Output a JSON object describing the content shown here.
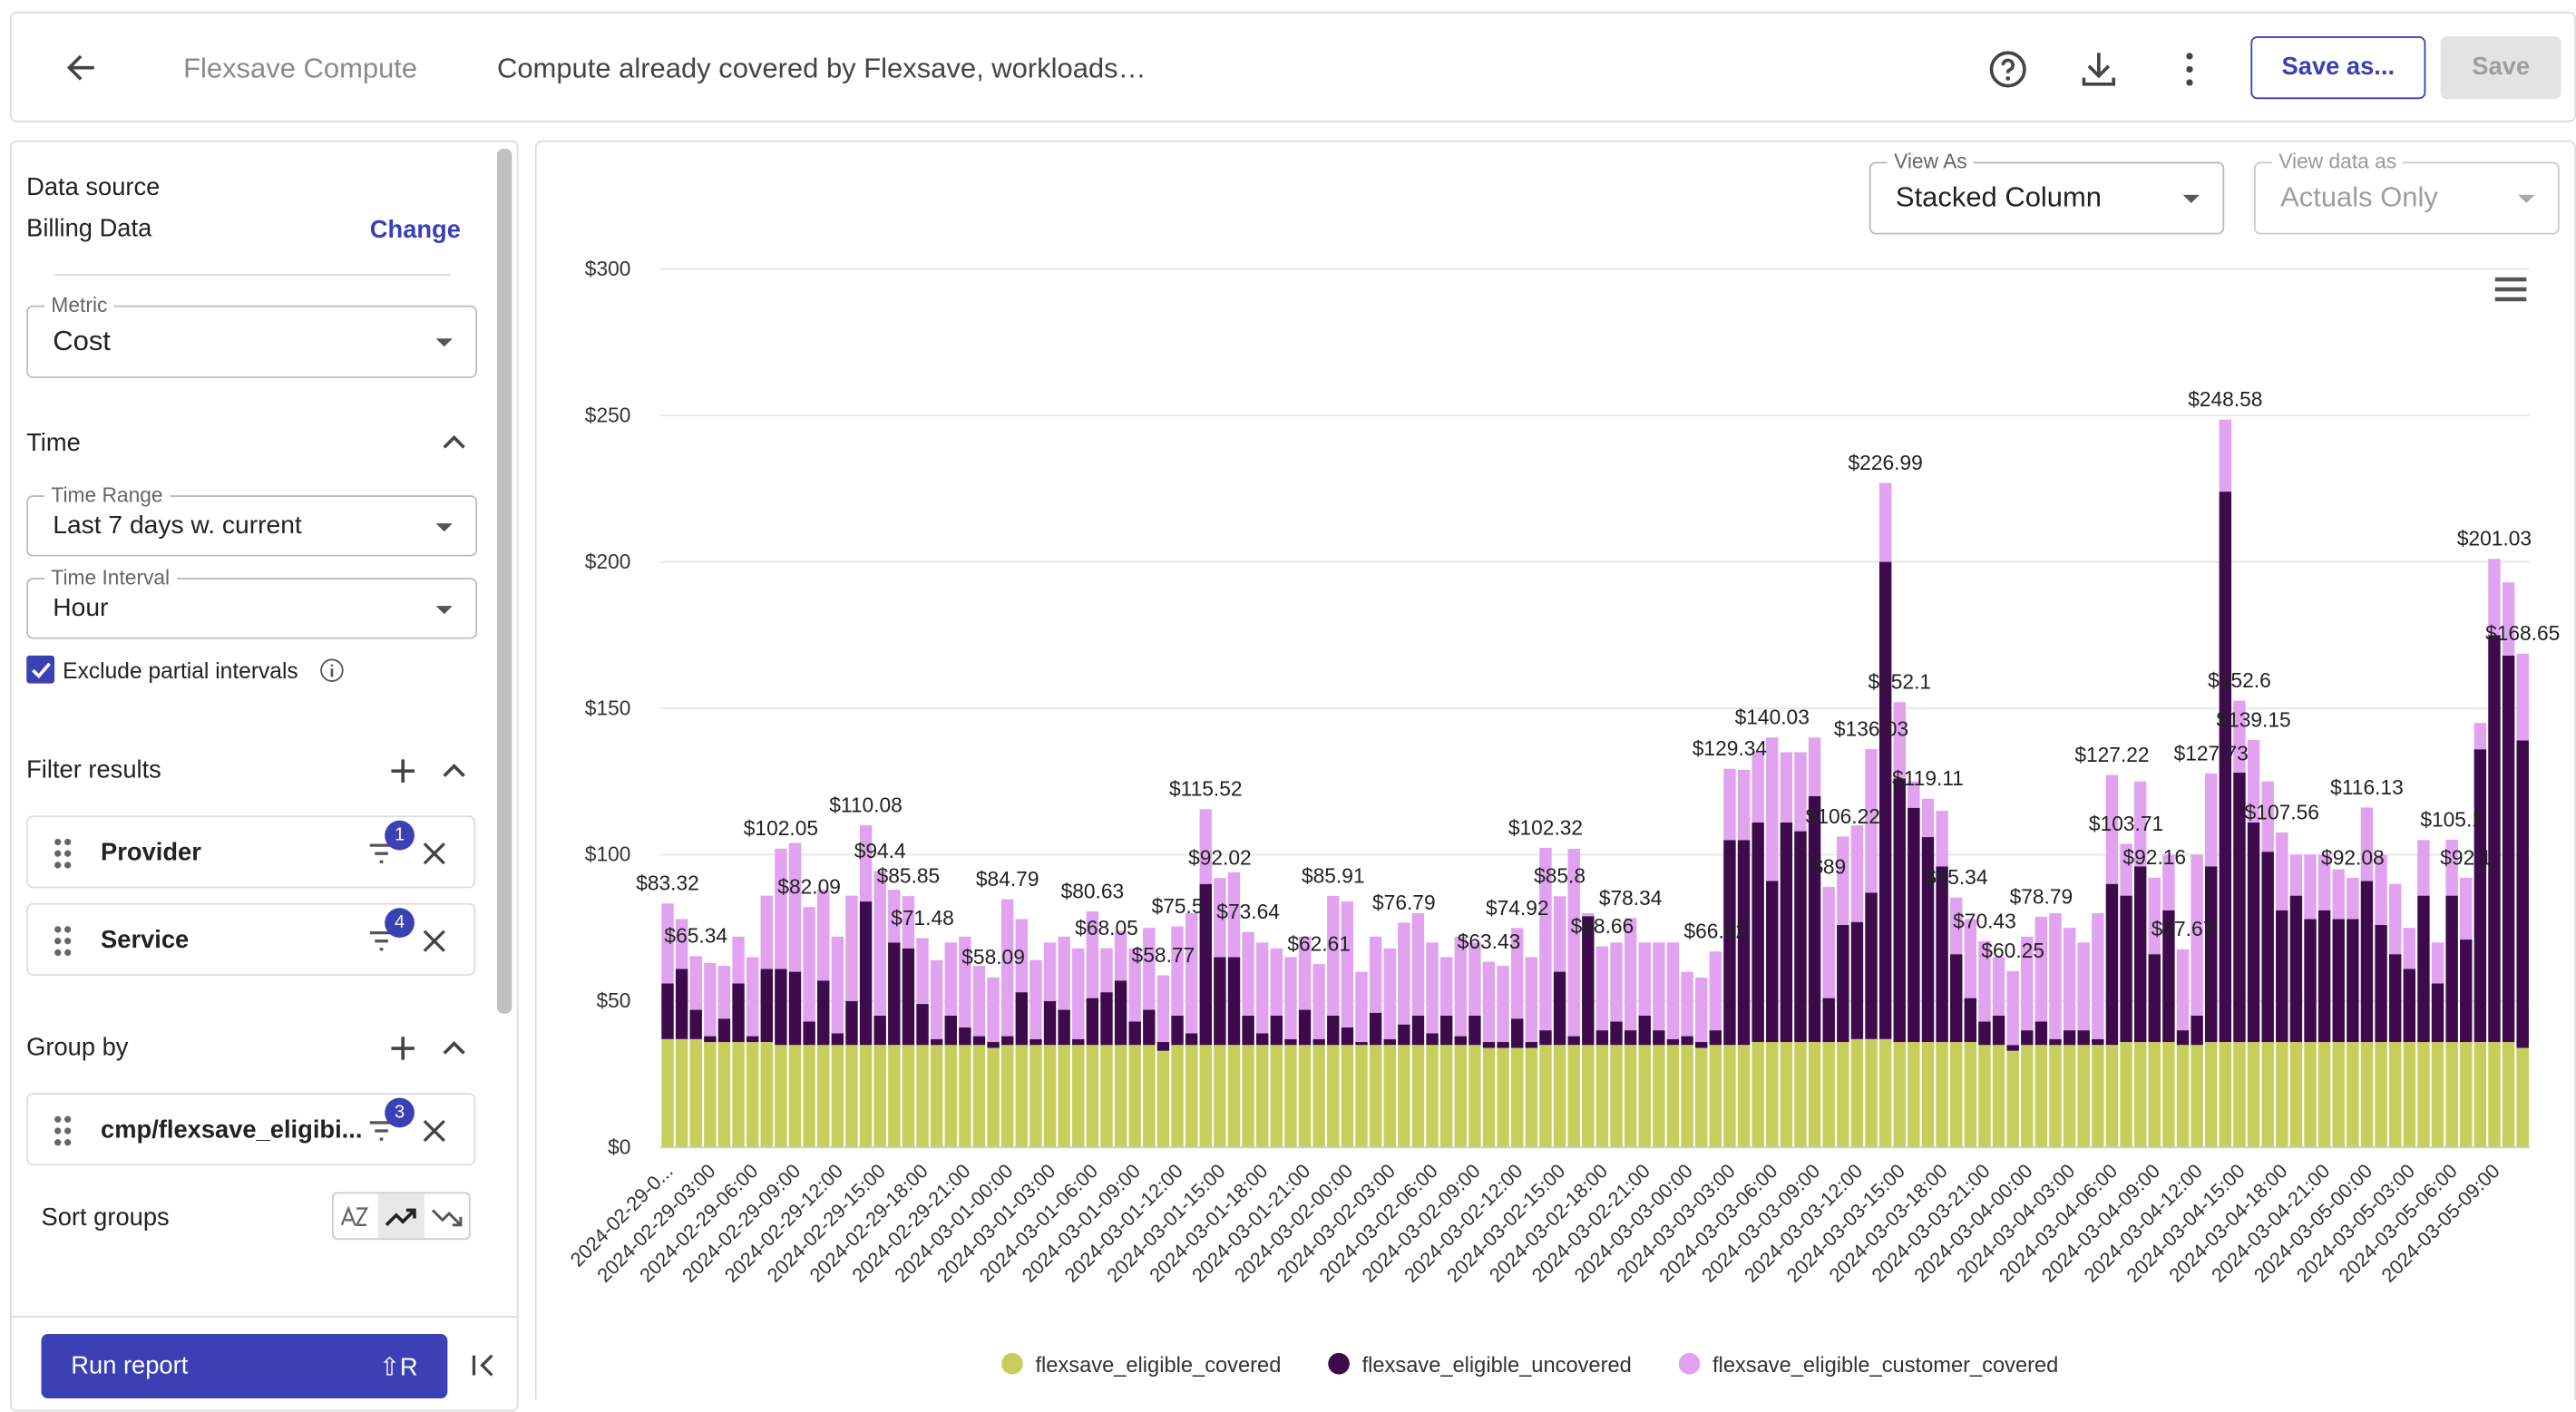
{
  "header": {
    "back": "",
    "report_name": "Flexsave Compute",
    "report_description": "Compute already covered by Flexsave, workloads…",
    "save_as": "Save as...",
    "save": "Save"
  },
  "sidebar": {
    "data_source_title": "Data source",
    "data_source_value": "Billing Data",
    "change": "Change",
    "metric_label": "Metric",
    "metric_value": "Cost",
    "time_title": "Time",
    "time_range_label": "Time Range",
    "time_range_value": "Last 7 days w. current",
    "time_interval_label": "Time Interval",
    "time_interval_value": "Hour",
    "exclude_partial": "Exclude partial intervals",
    "filter_title": "Filter results",
    "filters": [
      {
        "name": "Provider",
        "count": "1"
      },
      {
        "name": "Service",
        "count": "4"
      }
    ],
    "group_title": "Group by",
    "groups": [
      {
        "name": "cmp/flexsave_eligibi...",
        "count": "3"
      }
    ],
    "sort_groups": "Sort groups",
    "run_report": "Run report",
    "shortcut": "⇧R"
  },
  "view_as_label": "View As",
  "view_as_value": "Stacked Column",
  "view_data_label": "View data as",
  "view_data_value": "Actuals Only",
  "chart_data": {
    "type": "stacked_bar",
    "ylim": [
      0,
      300
    ],
    "yticks": [
      {
        "value": 0,
        "label": "$0"
      },
      {
        "value": 50,
        "label": "$50"
      },
      {
        "value": 100,
        "label": "$100"
      },
      {
        "value": 150,
        "label": "$150"
      },
      {
        "value": 200,
        "label": "$200"
      },
      {
        "value": 250,
        "label": "$250"
      },
      {
        "value": 300,
        "label": "$300"
      }
    ],
    "grid": true,
    "legend": "bottom",
    "categories": [
      "2024-02-29-0...",
      null,
      null,
      "2024-02-29-03:00",
      null,
      null,
      "2024-02-29-06:00",
      null,
      null,
      "2024-02-29-09:00",
      null,
      null,
      "2024-02-29-12:00",
      null,
      null,
      "2024-02-29-15:00",
      null,
      null,
      "2024-02-29-18:00",
      null,
      null,
      "2024-02-29-21:00",
      null,
      null,
      "2024-03-01-00:00",
      null,
      null,
      "2024-03-01-03:00",
      null,
      null,
      "2024-03-01-06:00",
      null,
      null,
      "2024-03-01-09:00",
      null,
      null,
      "2024-03-01-12:00",
      null,
      null,
      "2024-03-01-15:00",
      null,
      null,
      "2024-03-01-18:00",
      null,
      null,
      "2024-03-01-21:00",
      null,
      null,
      "2024-03-02-00:00",
      null,
      null,
      "2024-03-02-03:00",
      null,
      null,
      "2024-03-02-06:00",
      null,
      null,
      "2024-03-02-09:00",
      null,
      null,
      "2024-03-02-12:00",
      null,
      null,
      "2024-03-02-15:00",
      null,
      null,
      "2024-03-02-18:00",
      null,
      null,
      "2024-03-02-21:00",
      null,
      null,
      "2024-03-03-00:00",
      null,
      null,
      "2024-03-03-03:00",
      null,
      null,
      "2024-03-03-06:00",
      null,
      null,
      "2024-03-03-09:00",
      null,
      null,
      "2024-03-03-12:00",
      null,
      null,
      "2024-03-03-15:00",
      null,
      null,
      "2024-03-03-18:00",
      null,
      null,
      "2024-03-03-21:00",
      null,
      null,
      "2024-03-04-00:00",
      null,
      null,
      "2024-03-04-03:00",
      null,
      null,
      "2024-03-04-06:00",
      null,
      null,
      "2024-03-04-09:00",
      null,
      null,
      "2024-03-04-12:00",
      null,
      null,
      "2024-03-04-15:00",
      null,
      null,
      "2024-03-04-18:00",
      null,
      null,
      "2024-03-04-21:00",
      null,
      null,
      "2024-03-05-00:00",
      null,
      null,
      "2024-03-05-03:00",
      null,
      null,
      "2024-03-05-06:00",
      null,
      null,
      "2024-03-05-09:00",
      null,
      null
    ],
    "series": [
      {
        "name": "flexsave_eligible_covered",
        "color": "#c7ce5c",
        "values": [
          37,
          37,
          37,
          36,
          36,
          36,
          36,
          36,
          35,
          35,
          35,
          35,
          35,
          35,
          35,
          35,
          35,
          35,
          35,
          35,
          35,
          35,
          35,
          34,
          35,
          35,
          35,
          35,
          35,
          35,
          35,
          35,
          35,
          35,
          35,
          33,
          35,
          35,
          35,
          35,
          35,
          35,
          35,
          35,
          35,
          35,
          35,
          35,
          35,
          35,
          35,
          35,
          35,
          35,
          35,
          35,
          35,
          35,
          34,
          34,
          34,
          34,
          35,
          35,
          35,
          35,
          35,
          35,
          35,
          35,
          35,
          35,
          35,
          34,
          35,
          35,
          35,
          36,
          36,
          36,
          36,
          36,
          36,
          36,
          37,
          37,
          37,
          36,
          36,
          36,
          36,
          36,
          36,
          35,
          35,
          33,
          35,
          35,
          35,
          35,
          35,
          35,
          35,
          36,
          36,
          36,
          36,
          35,
          35,
          36,
          36,
          36,
          36,
          36,
          36,
          36,
          36,
          36,
          36,
          36,
          36,
          36,
          36,
          36,
          36,
          36,
          36,
          36,
          36,
          36,
          36,
          34
        ]
      },
      {
        "name": "flexsave_eligible_uncovered",
        "color": "#3d0b4b",
        "values": [
          19,
          24,
          10,
          2,
          8,
          20,
          2,
          25,
          26,
          25,
          8,
          22,
          4,
          15,
          49,
          10,
          35,
          33,
          14,
          2,
          10,
          6,
          3,
          2,
          3,
          18,
          2,
          15,
          12,
          2,
          16,
          18,
          22,
          8,
          12,
          3,
          10,
          4,
          55,
          30,
          30,
          10,
          4,
          10,
          2,
          12,
          2,
          10,
          6,
          1,
          11,
          2,
          7,
          10,
          4,
          10,
          3,
          10,
          2,
          2,
          10,
          2,
          5,
          25,
          3,
          44,
          5,
          8,
          5,
          10,
          5,
          2,
          3,
          2,
          5,
          70,
          70,
          75,
          55,
          75,
          72,
          84,
          15,
          40,
          40,
          50,
          163,
          90,
          80,
          70,
          60,
          30,
          15,
          8,
          10,
          2,
          5,
          8,
          2,
          5,
          5,
          2,
          55,
          50,
          60,
          30,
          45,
          5,
          10,
          60,
          188,
          92,
          75,
          65,
          45,
          50,
          42,
          45,
          42,
          42,
          55,
          40,
          30,
          25,
          50,
          20,
          50,
          35,
          100,
          139,
          132,
          105
        ]
      },
      {
        "name": "flexsave_eligible_customer_covered",
        "color": "#e1a3ef",
        "values": [
          27.32,
          17,
          18.34,
          25,
          18,
          16,
          27,
          25,
          41.05,
          44,
          39.09,
          31,
          33,
          36,
          26.08,
          49.4,
          18,
          17.85,
          22.48,
          27,
          25,
          31,
          24,
          22.09,
          46.79,
          25,
          27,
          20,
          25,
          31,
          29.63,
          15.05,
          17,
          25,
          28,
          22.77,
          30.5,
          41,
          25.52,
          27.02,
          29,
          28.64,
          31,
          23,
          28,
          25,
          25.61,
          40.91,
          43,
          24,
          26,
          31,
          34.79,
          35,
          31,
          20,
          34,
          25,
          27.43,
          26,
          30.92,
          29,
          62.32,
          25.8,
          64,
          1,
          28.66,
          27,
          38.34,
          25,
          30,
          33,
          22,
          22,
          26.92,
          24.34,
          24,
          24,
          49.03,
          24,
          27,
          20,
          38,
          30.22,
          33,
          49.03,
          26.99,
          26.1,
          9,
          13.11,
          19,
          19.34,
          27,
          27.43,
          20,
          25.25,
          32,
          35.79,
          43,
          35,
          30,
          43,
          37.22,
          17.71,
          29,
          26.16,
          19,
          27.67,
          55,
          31.73,
          24.58,
          24.6,
          28.15,
          24,
          26.56,
          14,
          22,
          19,
          17,
          14.08,
          25.13,
          24,
          24,
          14,
          19,
          14,
          19.1,
          21.1,
          9,
          26.03,
          25,
          29.65
        ]
      }
    ],
    "total_labels": [
      "$83.32",
      null,
      "$65.34",
      null,
      null,
      null,
      null,
      null,
      "$102.05",
      null,
      "$82.09",
      null,
      null,
      null,
      "$110.08",
      "$94.4",
      null,
      "$85.85",
      "$71.48",
      null,
      null,
      null,
      null,
      "$58.09",
      "$84.79",
      null,
      null,
      null,
      null,
      null,
      "$80.63",
      "$68.05",
      null,
      null,
      null,
      "$58.77",
      "$75.5",
      null,
      "$115.52",
      "$92.02",
      null,
      "$73.64",
      null,
      null,
      null,
      null,
      "$62.61",
      "$85.91",
      null,
      null,
      null,
      null,
      "$76.79",
      null,
      null,
      null,
      null,
      null,
      "$63.43",
      null,
      "$74.92",
      null,
      "$102.32",
      "$85.8",
      null,
      null,
      "$68.66",
      null,
      "$78.34",
      null,
      null,
      null,
      null,
      null,
      "$66.92",
      "$129.34",
      null,
      null,
      "$140.03",
      null,
      null,
      null,
      "$89",
      "$106.22",
      null,
      "$136.03",
      "$226.99",
      "$152.1",
      null,
      "$119.11",
      null,
      "$85.34",
      null,
      "$70.43",
      null,
      "$60.25",
      null,
      "$78.79",
      null,
      null,
      null,
      null,
      "$127.22",
      "$103.71",
      null,
      "$92.16",
      null,
      "$67.67",
      null,
      "$127.73",
      "$248.58",
      "$152.6",
      "$139.15",
      null,
      "$107.56",
      null,
      null,
      null,
      null,
      "$92.08",
      "$116.13",
      null,
      null,
      null,
      null,
      null,
      "$105.1",
      "$92.1",
      null,
      "$201.03",
      null,
      "$168.65"
    ]
  }
}
